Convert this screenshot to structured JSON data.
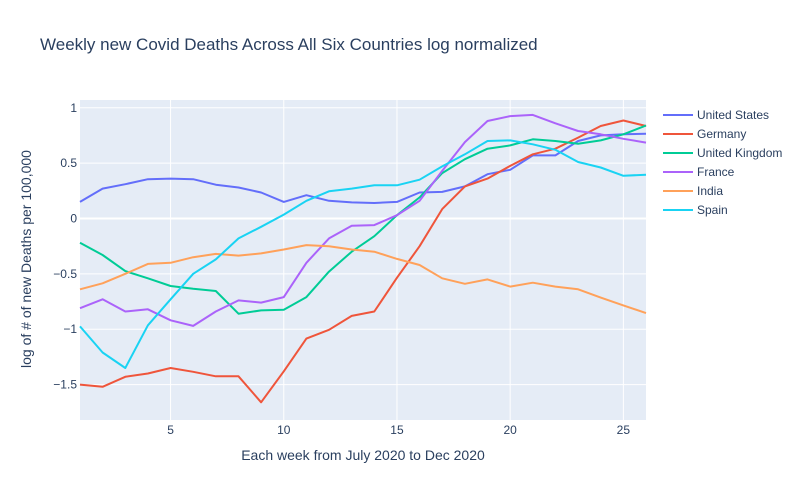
{
  "chart_data": {
    "type": "line",
    "title": "Weekly new Covid Deaths Across All Six Countries log normalized",
    "xlabel": "Each week from July 2020 to Dec 2020",
    "ylabel": "log of # of new Deaths per 100,000",
    "xlim": [
      1,
      26
    ],
    "ylim": [
      -1.82,
      1.07
    ],
    "xticks": [
      5,
      10,
      15,
      20,
      25
    ],
    "yticks": [
      -1.5,
      -1,
      -0.5,
      0,
      0.5,
      1
    ],
    "ytick_labels": [
      "−1.5",
      "−1",
      "−0.5",
      "0",
      "0.5",
      "1"
    ],
    "grid": true,
    "legend_position": "right",
    "x": [
      1,
      2,
      3,
      4,
      5,
      6,
      7,
      8,
      9,
      10,
      11,
      12,
      13,
      14,
      15,
      16,
      17,
      18,
      19,
      20,
      21,
      22,
      23,
      24,
      25,
      26
    ],
    "series": [
      {
        "name": "United States",
        "color": "#636efa",
        "values": [
          0.15,
          0.27,
          0.31,
          0.355,
          0.36,
          0.355,
          0.305,
          0.28,
          0.235,
          0.15,
          0.21,
          0.16,
          0.145,
          0.14,
          0.15,
          0.235,
          0.24,
          0.29,
          0.4,
          0.44,
          0.57,
          0.57,
          0.7,
          0.75,
          0.76,
          0.765
        ]
      },
      {
        "name": "Germany",
        "color": "#EF553B",
        "values": [
          -1.5,
          -1.52,
          -1.43,
          -1.4,
          -1.35,
          -1.385,
          -1.425,
          -1.425,
          -1.66,
          -1.38,
          -1.085,
          -1.005,
          -0.88,
          -0.84,
          -0.535,
          -0.25,
          0.085,
          0.29,
          0.36,
          0.475,
          0.58,
          0.63,
          0.73,
          0.835,
          0.885,
          0.835
        ]
      },
      {
        "name": "United Kingdom",
        "color": "#00cc96",
        "values": [
          -0.22,
          -0.33,
          -0.475,
          -0.54,
          -0.61,
          -0.635,
          -0.655,
          -0.86,
          -0.83,
          -0.825,
          -0.71,
          -0.48,
          -0.3,
          -0.16,
          0.03,
          0.19,
          0.41,
          0.535,
          0.63,
          0.66,
          0.715,
          0.7,
          0.675,
          0.705,
          0.76,
          0.84
        ]
      },
      {
        "name": "France",
        "color": "#ab63fa",
        "values": [
          -0.81,
          -0.73,
          -0.84,
          -0.82,
          -0.92,
          -0.97,
          -0.84,
          -0.74,
          -0.76,
          -0.71,
          -0.4,
          -0.18,
          -0.065,
          -0.06,
          0.03,
          0.16,
          0.43,
          0.69,
          0.88,
          0.925,
          0.935,
          0.86,
          0.79,
          0.76,
          0.72,
          0.685
        ]
      },
      {
        "name": "India",
        "color": "#FFA15A",
        "values": [
          -0.64,
          -0.585,
          -0.5,
          -0.41,
          -0.4,
          -0.35,
          -0.32,
          -0.335,
          -0.315,
          -0.28,
          -0.24,
          -0.25,
          -0.28,
          -0.3,
          -0.365,
          -0.42,
          -0.54,
          -0.59,
          -0.55,
          -0.615,
          -0.58,
          -0.615,
          -0.64,
          -0.715,
          -0.785,
          -0.855
        ]
      },
      {
        "name": "Spain",
        "color": "#19d3f3",
        "values": [
          -0.975,
          -1.21,
          -1.35,
          -0.965,
          -0.73,
          -0.5,
          -0.37,
          -0.18,
          -0.075,
          0.035,
          0.16,
          0.245,
          0.27,
          0.3,
          0.3,
          0.35,
          0.47,
          0.58,
          0.7,
          0.705,
          0.67,
          0.62,
          0.51,
          0.46,
          0.385,
          0.395
        ]
      }
    ]
  }
}
